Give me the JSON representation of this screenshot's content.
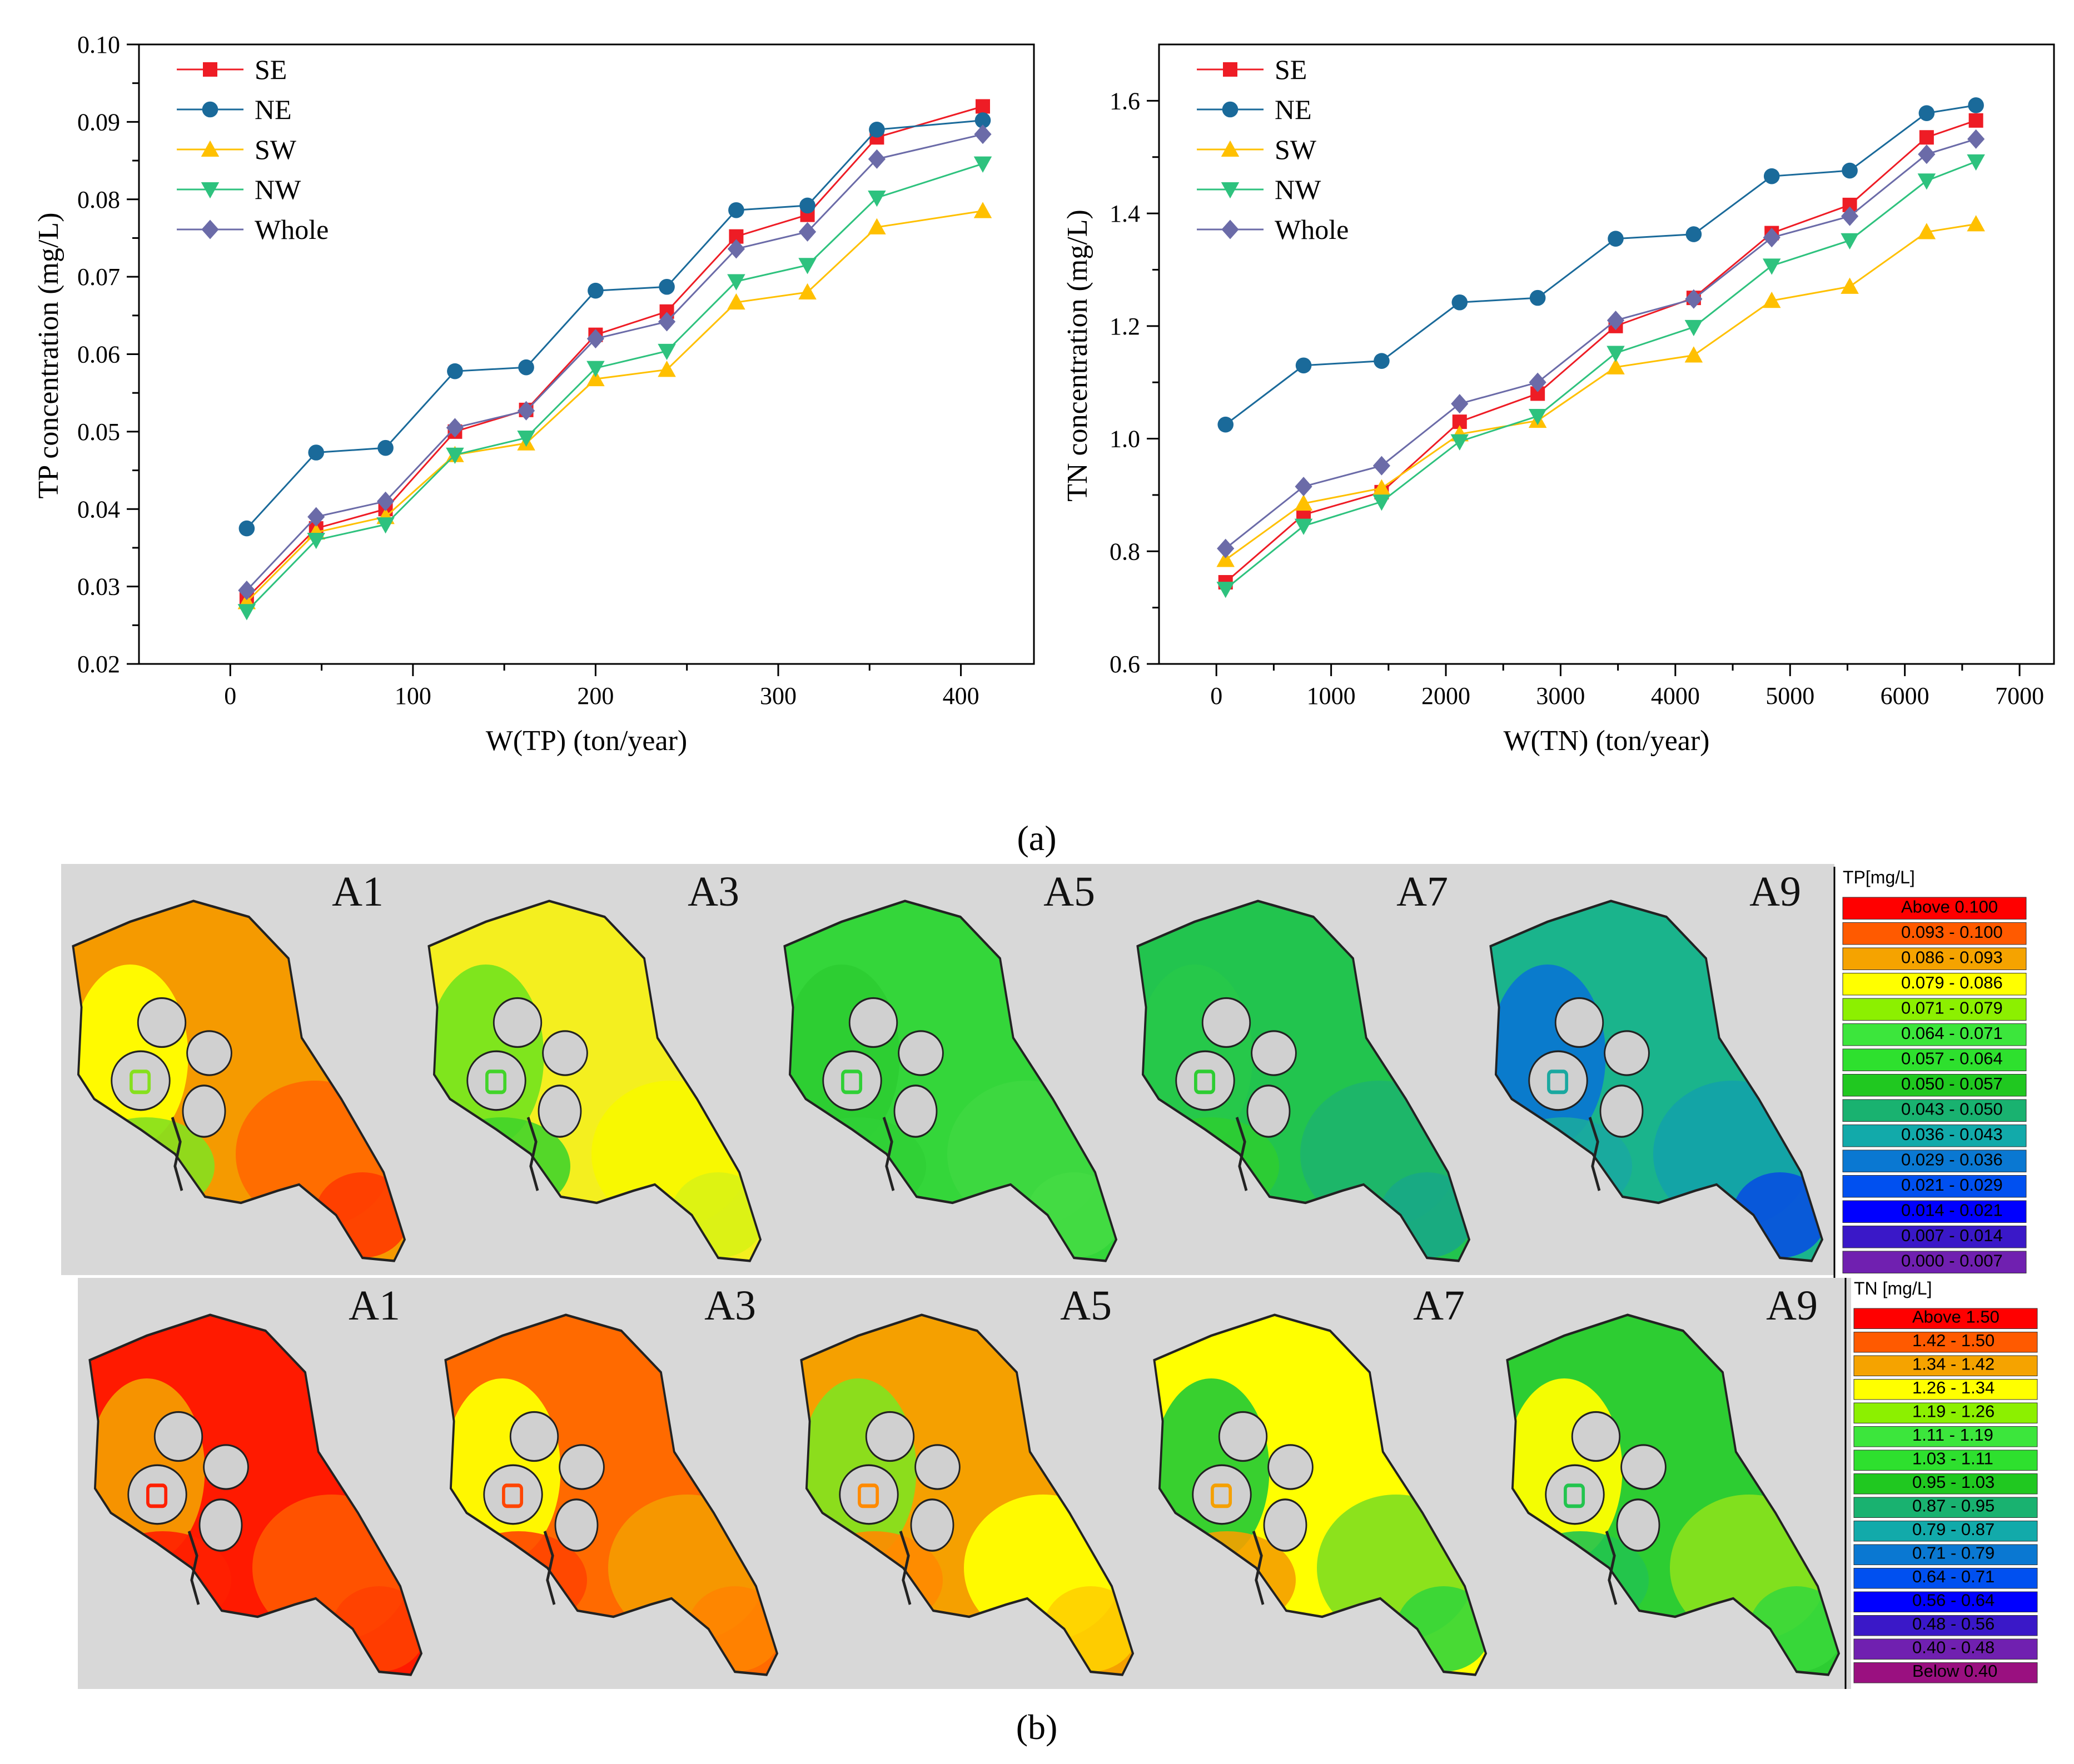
{
  "chart_data": [
    {
      "type": "line",
      "xlabel": "W(TP) (ton/year)",
      "ylabel": "TP concentration (mg/L)",
      "xlim": [
        -50,
        440
      ],
      "ylim": [
        0.02,
        0.1
      ],
      "xticks": [
        0,
        100,
        200,
        300,
        400
      ],
      "xtick_labels": [
        "0",
        "100",
        "200",
        "300",
        "400"
      ],
      "yticks": [
        0.02,
        0.03,
        0.04,
        0.05,
        0.06,
        0.07,
        0.08,
        0.09,
        0.1
      ],
      "ytick_labels": [
        "0.02",
        "0.03",
        "0.04",
        "0.05",
        "0.06",
        "0.07",
        "0.08",
        "0.09",
        "0.10"
      ],
      "legend_position": "top-left",
      "x": [
        9,
        47,
        85,
        123,
        162,
        200,
        239,
        277,
        316,
        354,
        412
      ],
      "series": [
        {
          "name": "SE",
          "color": "#ee1c25",
          "marker": "square",
          "values": [
            0.0285,
            0.0375,
            0.04,
            0.05,
            0.0528,
            0.0625,
            0.0655,
            0.0752,
            0.078,
            0.088,
            0.092
          ]
        },
        {
          "name": "NE",
          "color": "#1a6a9a",
          "marker": "circle",
          "values": [
            0.0375,
            0.0473,
            0.0479,
            0.0578,
            0.0583,
            0.0682,
            0.0687,
            0.0786,
            0.0792,
            0.089,
            0.0902
          ]
        },
        {
          "name": "SW",
          "color": "#ffc000",
          "marker": "triangle-up",
          "values": [
            0.028,
            0.037,
            0.039,
            0.047,
            0.0485,
            0.0568,
            0.058,
            0.0667,
            0.068,
            0.0764,
            0.0785
          ]
        },
        {
          "name": "NW",
          "color": "#2ec27e",
          "marker": "triangle-down",
          "values": [
            0.0268,
            0.036,
            0.038,
            0.047,
            0.0492,
            0.0582,
            0.0604,
            0.0694,
            0.0715,
            0.0802,
            0.0846
          ]
        },
        {
          "name": "Whole",
          "color": "#6b6ba8",
          "marker": "diamond",
          "values": [
            0.0295,
            0.039,
            0.041,
            0.0505,
            0.0527,
            0.062,
            0.0642,
            0.0736,
            0.0758,
            0.0852,
            0.0884
          ]
        }
      ]
    },
    {
      "type": "line",
      "xlabel": "W(TN) (ton/year)",
      "ylabel": "TN concentration (mg/L)",
      "xlim": [
        -500,
        7300
      ],
      "ylim": [
        0.6,
        1.7
      ],
      "xticks": [
        0,
        1000,
        2000,
        3000,
        4000,
        5000,
        6000,
        7000
      ],
      "xtick_labels": [
        "0",
        "1000",
        "2000",
        "3000",
        "4000",
        "5000",
        "6000",
        "7000"
      ],
      "yticks": [
        0.6,
        0.8,
        1.0,
        1.2,
        1.4,
        1.6
      ],
      "ytick_labels": [
        "0.6",
        "0.8",
        "1.0",
        "1.2",
        "1.4",
        "1.6"
      ],
      "legend_position": "top-left",
      "x": [
        80,
        760,
        1440,
        2120,
        2800,
        3480,
        4160,
        4840,
        5520,
        6190,
        6620
      ],
      "series": [
        {
          "name": "SE",
          "color": "#ee1c25",
          "marker": "square",
          "values": [
            0.745,
            0.865,
            0.905,
            1.03,
            1.08,
            1.2,
            1.25,
            1.365,
            1.415,
            1.535,
            1.565
          ]
        },
        {
          "name": "NE",
          "color": "#1a6a9a",
          "marker": "circle",
          "values": [
            1.025,
            1.13,
            1.138,
            1.242,
            1.25,
            1.355,
            1.363,
            1.466,
            1.476,
            1.578,
            1.592
          ]
        },
        {
          "name": "SW",
          "color": "#ffc000",
          "marker": "triangle-up",
          "values": [
            0.785,
            0.885,
            0.912,
            1.008,
            1.032,
            1.127,
            1.148,
            1.245,
            1.27,
            1.367,
            1.381
          ]
        },
        {
          "name": "NW",
          "color": "#2ec27e",
          "marker": "triangle-down",
          "values": [
            0.733,
            0.845,
            0.888,
            0.995,
            1.04,
            1.152,
            1.198,
            1.307,
            1.352,
            1.458,
            1.492
          ]
        },
        {
          "name": "Whole",
          "color": "#6b6ba8",
          "marker": "diamond",
          "values": [
            0.805,
            0.915,
            0.952,
            1.062,
            1.1,
            1.21,
            1.248,
            1.357,
            1.395,
            1.505,
            1.532
          ]
        }
      ]
    }
  ],
  "panel_labels": {
    "a": "(a)",
    "b": "(b)",
    "a_letter": "a",
    "b_letter": "b"
  },
  "maps": {
    "top_row": [
      {
        "label": "A1",
        "colors": [
          "#f59a00",
          "#ff6a00",
          "#ffff00",
          "#86e01e",
          "#ff3b00"
        ]
      },
      {
        "label": "A3",
        "colors": [
          "#f4ef1f",
          "#f8f800",
          "#78e41e",
          "#42d42a",
          "#d9f214"
        ]
      },
      {
        "label": "A5",
        "colors": [
          "#34d63a",
          "#3ed840",
          "#2dcd32",
          "#30d036",
          "#44dc44"
        ]
      },
      {
        "label": "A7",
        "colors": [
          "#22c44e",
          "#1eb56a",
          "#27c84a",
          "#2dcd32",
          "#18a986"
        ]
      },
      {
        "label": "A9",
        "colors": [
          "#1ab48c",
          "#13a3a8",
          "#0a78d0",
          "#1aa8a0",
          "#0850e0"
        ]
      }
    ],
    "bottom_row": [
      {
        "label": "A1",
        "colors": [
          "#ff1a00",
          "#ff5500",
          "#f59a00",
          "#ff2000",
          "#ff4000"
        ]
      },
      {
        "label": "A3",
        "colors": [
          "#ff6a00",
          "#f59a00",
          "#ffff00",
          "#ff4500",
          "#ff8400"
        ]
      },
      {
        "label": "A5",
        "colors": [
          "#f5a000",
          "#ffff00",
          "#86e01e",
          "#ff8a00",
          "#ffd000"
        ]
      },
      {
        "label": "A7",
        "colors": [
          "#ffff00",
          "#86e01e",
          "#2dcd32",
          "#f5a000",
          "#34d63a"
        ]
      },
      {
        "label": "A9",
        "colors": [
          "#2dcd32",
          "#86e01e",
          "#ffff00",
          "#22c44e",
          "#38d83a"
        ]
      }
    ]
  },
  "colorbars": [
    {
      "title": "TP[mg/L]",
      "entries": [
        {
          "label": "Above  0.100",
          "color": "#ff0000"
        },
        {
          "label": "0.093 - 0.100",
          "color": "#ff5a00"
        },
        {
          "label": "0.086 - 0.093",
          "color": "#f5a300"
        },
        {
          "label": "0.079 - 0.086",
          "color": "#ffff00"
        },
        {
          "label": "0.071 - 0.079",
          "color": "#8cf000"
        },
        {
          "label": "0.064 - 0.071",
          "color": "#3ce63c"
        },
        {
          "label": "0.057 - 0.064",
          "color": "#2ee02e"
        },
        {
          "label": "0.050 - 0.057",
          "color": "#20c820"
        },
        {
          "label": "0.043 - 0.050",
          "color": "#19b270"
        },
        {
          "label": "0.036 - 0.043",
          "color": "#12aaaa"
        },
        {
          "label": "0.029 - 0.036",
          "color": "#0a78d2"
        },
        {
          "label": "0.021 - 0.029",
          "color": "#0050f0"
        },
        {
          "label": "0.014 - 0.021",
          "color": "#0000ff"
        },
        {
          "label": "0.007 - 0.014",
          "color": "#3a18c8"
        },
        {
          "label": "0.000 - 0.007",
          "color": "#7020b0"
        }
      ]
    },
    {
      "title": "TN [mg/L]",
      "entries": [
        {
          "label": "Above 1.50",
          "color": "#ff0000"
        },
        {
          "label": "1.42 - 1.50",
          "color": "#ff5a00"
        },
        {
          "label": "1.34 - 1.42",
          "color": "#f5a300"
        },
        {
          "label": "1.26 - 1.34",
          "color": "#ffff00"
        },
        {
          "label": "1.19 - 1.26",
          "color": "#8cf000"
        },
        {
          "label": "1.11 - 1.19",
          "color": "#3ce63c"
        },
        {
          "label": "1.03 - 1.11",
          "color": "#2ee02e"
        },
        {
          "label": "0.95 - 1.03",
          "color": "#20c820"
        },
        {
          "label": "0.87 - 0.95",
          "color": "#19b270"
        },
        {
          "label": "0.79 - 0.87",
          "color": "#12aaaa"
        },
        {
          "label": "0.71 - 0.79",
          "color": "#0a78d2"
        },
        {
          "label": "0.64 - 0.71",
          "color": "#0050f0"
        },
        {
          "label": "0.56 - 0.64",
          "color": "#0000ff"
        },
        {
          "label": "0.48 - 0.56",
          "color": "#3a18c8"
        },
        {
          "label": "0.40 - 0.48",
          "color": "#7020b0"
        },
        {
          "label": "Below 0.40",
          "color": "#9a1080"
        }
      ]
    }
  ]
}
